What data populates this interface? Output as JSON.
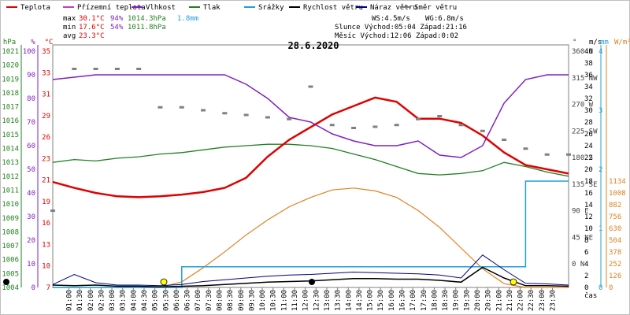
{
  "chart_data": {
    "type": "line",
    "title": "28.6.2020",
    "xlabel": "čas",
    "legend": [
      {
        "name": "Teplota",
        "color": "#e00000"
      },
      {
        "name": "Přízemní teplota",
        "color": "#c040c0"
      },
      {
        "name": "Vlhkost",
        "color": "#8020c0"
      },
      {
        "name": "Tlak",
        "color": "#208020"
      },
      {
        "name": "Srážky",
        "color": "#20a0d0"
      },
      {
        "name": "Rychlost větru",
        "color": "#000000"
      },
      {
        "name": "Náraz větru",
        "color": "#000080"
      },
      {
        "name": "Směr větru",
        "color": "#808080"
      }
    ],
    "summary": {
      "max": {
        "label": "max",
        "temp": "30.1°C",
        "hum": "94%",
        "press": "1014.3hPa",
        "rain": "1.8mm"
      },
      "min": {
        "label": "min",
        "temp": "17.6°C",
        "hum": "54%",
        "press": "1011.8hPa"
      },
      "avg": {
        "label": "avg",
        "temp": "23.3°C"
      }
    },
    "info": {
      "ws": "WS:4.5m/s",
      "wg": "WG:6.8m/s",
      "sun": "Slunce Východ:05:04  Západ:21:16",
      "moon": "Měsíc  Východ:12:06  Západ:0:02"
    },
    "left_axes": {
      "hpa": {
        "unit": "hPa",
        "ticks": [
          "1004",
          "1005",
          "1006",
          "1007",
          "1008",
          "1009",
          "1010",
          "1011",
          "1012",
          "1013",
          "1014",
          "1015",
          "1016",
          "1017",
          "1018",
          "1019",
          "1020",
          "1021"
        ],
        "color": "#208020"
      },
      "pct": {
        "unit": "%",
        "ticks": [
          "0",
          "10",
          "20",
          "30",
          "40",
          "50",
          "60",
          "70",
          "80",
          "90",
          "100"
        ],
        "color": "#8020c0"
      },
      "degc": {
        "unit": "°C",
        "ticks": [
          "7",
          "10",
          "13",
          "16",
          "19",
          "21",
          "23",
          "26",
          "29",
          "31",
          "33",
          "35"
        ],
        "color": "#e00000"
      }
    },
    "right_axes": {
      "dir": {
        "unit": "°",
        "ticks": [
          "0 N",
          "45 NE",
          "90 E",
          "135 SE",
          "180 S",
          "225 SW",
          "270 W",
          "315 NW",
          "360 N"
        ],
        "color": "#404040"
      },
      "ms": {
        "unit": "m/s",
        "ticks": [
          "0",
          "2",
          "4",
          "6",
          "8",
          "10",
          "12",
          "14",
          "16",
          "18",
          "20",
          "22",
          "24",
          "26",
          "28",
          "30",
          "32",
          "34",
          "36",
          "38",
          "40"
        ],
        "color": "#000000"
      },
      "mm": {
        "unit": "mm",
        "ticks": [
          "0",
          "1",
          "2",
          "3",
          "4"
        ],
        "color": "#20a0d0"
      },
      "wm2": {
        "unit": "W/m²",
        "ticks": [
          "0",
          "126",
          "252",
          "378",
          "504",
          "630",
          "756",
          "882",
          "1008",
          "1134"
        ],
        "color": "#e08020"
      }
    },
    "x_ticks": [
      "01:00",
      "01:30",
      "02:00",
      "02:30",
      "03:00",
      "03:30",
      "04:00",
      "04:30",
      "05:00",
      "05:30",
      "06:00",
      "06:30",
      "07:00",
      "07:30",
      "08:00",
      "08:30",
      "09:00",
      "09:30",
      "10:00",
      "10:30",
      "11:00",
      "11:30",
      "12:00",
      "12:30",
      "13:00",
      "13:30",
      "14:00",
      "14:30",
      "15:00",
      "15:30",
      "16:00",
      "16:30",
      "17:00",
      "17:30",
      "18:00",
      "18:30",
      "19:00",
      "19:30",
      "20:00",
      "20:30",
      "21:00",
      "21:30",
      "22:00",
      "22:30",
      "23:00",
      "23:30"
    ],
    "hours": [
      0,
      1,
      2,
      3,
      4,
      5,
      6,
      7,
      8,
      9,
      10,
      11,
      12,
      13,
      14,
      15,
      16,
      17,
      18,
      19,
      20,
      21,
      22,
      23,
      24
    ],
    "temperature": [
      19.5,
      18.8,
      18.2,
      17.8,
      17.7,
      17.8,
      18.0,
      18.3,
      18.8,
      20.0,
      22.5,
      24.5,
      26.0,
      27.5,
      28.5,
      29.5,
      29.0,
      27.0,
      27.0,
      26.5,
      25.0,
      23.0,
      21.5,
      21.0,
      20.5
    ],
    "humidity": [
      88,
      89,
      90,
      90,
      90,
      90,
      90,
      90,
      90,
      86,
      80,
      72,
      70,
      65,
      62,
      60,
      60,
      62,
      56,
      55,
      60,
      78,
      88,
      90,
      90
    ],
    "pressure": [
      1013.0,
      1013.2,
      1013.1,
      1013.3,
      1013.4,
      1013.6,
      1013.7,
      1013.9,
      1014.1,
      1014.2,
      1014.3,
      1014.3,
      1014.2,
      1014.0,
      1013.6,
      1013.2,
      1012.7,
      1012.2,
      1012.1,
      1012.2,
      1012.4,
      1013.0,
      1012.7,
      1012.3,
      1012.0
    ],
    "rain": [
      0,
      0,
      0,
      0,
      0,
      0,
      0.35,
      0.35,
      0.35,
      0.35,
      0.35,
      0.35,
      0.35,
      0.35,
      0.35,
      0.35,
      0.35,
      0.35,
      0.35,
      0.35,
      0.35,
      0.35,
      1.8,
      1.8,
      1.8
    ],
    "solar": [
      0,
      0,
      0,
      0,
      0,
      0,
      60,
      210,
      380,
      560,
      720,
      860,
      960,
      1040,
      1060,
      1030,
      960,
      820,
      640,
      420,
      200,
      40,
      0,
      0,
      0
    ],
    "wind_speed": [
      0.4,
      0.3,
      0.4,
      0.2,
      0.2,
      0.1,
      0.2,
      0.3,
      0.5,
      0.7,
      0.9,
      1.0,
      1.1,
      1.3,
      1.5,
      1.5,
      1.4,
      1.4,
      1.2,
      0.9,
      3.4,
      1.6,
      0.3,
      0.3,
      0.2
    ],
    "wind_gust": [
      0.5,
      2.2,
      0.8,
      0.4,
      0.4,
      0.3,
      0.5,
      1.0,
      1.3,
      1.6,
      1.9,
      2.1,
      2.2,
      2.4,
      2.6,
      2.5,
      2.4,
      2.3,
      2.1,
      1.6,
      5.5,
      3.0,
      0.7,
      0.6,
      0.4
    ],
    "wind_dir": [
      90,
      330,
      330,
      330,
      330,
      265,
      265,
      260,
      255,
      252,
      248,
      245,
      300,
      235,
      230,
      232,
      235,
      245,
      250,
      235,
      225,
      210,
      195,
      185,
      185
    ]
  }
}
